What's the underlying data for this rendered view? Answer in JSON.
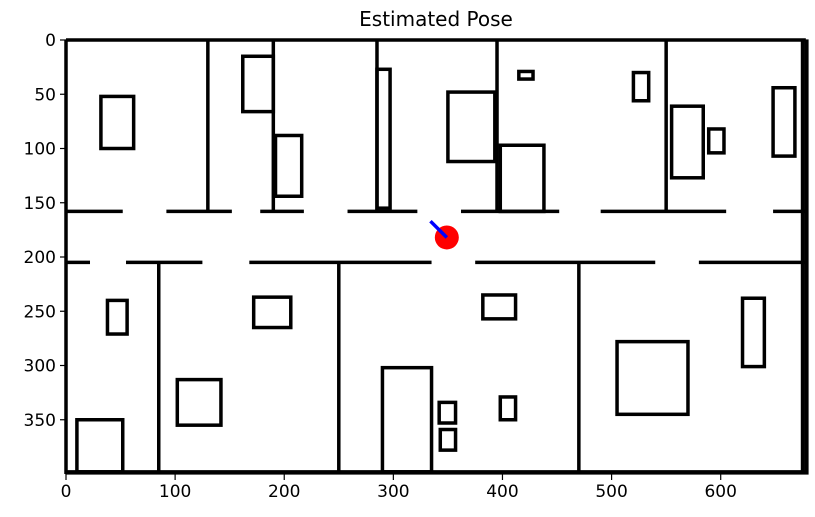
{
  "chart_data": {
    "type": "scatter",
    "title": "Estimated Pose",
    "xlabel": "",
    "ylabel": "",
    "xlim": [
      0,
      680
    ],
    "ylim": [
      400,
      0
    ],
    "y_inverted": true,
    "grid": false,
    "x_ticks": [
      0,
      100,
      200,
      300,
      400,
      500,
      600
    ],
    "y_ticks": [
      0,
      50,
      100,
      150,
      200,
      250,
      300,
      350
    ],
    "colors": {
      "map": "#000000",
      "pose": "#ff0000",
      "heading": "#0000ff",
      "background": "#ffffff"
    },
    "map": {
      "lines": [
        [
          0,
          0,
          678,
          0
        ],
        [
          0,
          0,
          0,
          400
        ],
        [
          0,
          398,
          678,
          398
        ],
        [
          678,
          0,
          678,
          400
        ],
        [
          675,
          0,
          675,
          400
        ],
        [
          130,
          0,
          130,
          158
        ],
        [
          190,
          0,
          190,
          158
        ],
        [
          285,
          0,
          285,
          158
        ],
        [
          395,
          0,
          395,
          158
        ],
        [
          550,
          0,
          550,
          158
        ],
        [
          0,
          158,
          52,
          158
        ],
        [
          92,
          158,
          152,
          158
        ],
        [
          178,
          158,
          218,
          158
        ],
        [
          258,
          158,
          322,
          158
        ],
        [
          362,
          158,
          452,
          158
        ],
        [
          490,
          158,
          605,
          158
        ],
        [
          648,
          158,
          678,
          158
        ],
        [
          0,
          205,
          22,
          205
        ],
        [
          55,
          205,
          125,
          205
        ],
        [
          168,
          205,
          335,
          205
        ],
        [
          375,
          205,
          540,
          205
        ],
        [
          580,
          205,
          678,
          205
        ],
        [
          85,
          205,
          85,
          400
        ],
        [
          250,
          205,
          250,
          400
        ],
        [
          470,
          205,
          470,
          400
        ]
      ],
      "rects": [
        [
          32,
          52,
          62,
          100
        ],
        [
          162,
          15,
          190,
          66
        ],
        [
          192,
          88,
          216,
          144
        ],
        [
          285,
          27,
          297,
          155
        ],
        [
          350,
          48,
          393,
          112
        ],
        [
          398,
          97,
          438,
          158
        ],
        [
          415,
          29,
          428,
          36
        ],
        [
          520,
          30,
          534,
          56
        ],
        [
          555,
          61,
          584,
          127
        ],
        [
          589,
          82,
          603,
          104
        ],
        [
          648,
          44,
          668,
          107
        ],
        [
          38,
          240,
          56,
          271
        ],
        [
          172,
          237,
          206,
          265
        ],
        [
          382,
          235,
          412,
          257
        ],
        [
          102,
          313,
          142,
          355
        ],
        [
          10,
          350,
          52,
          398
        ],
        [
          290,
          302,
          335,
          398
        ],
        [
          342,
          334,
          357,
          353
        ],
        [
          343,
          359,
          357,
          378
        ],
        [
          398,
          329,
          412,
          350
        ],
        [
          505,
          278,
          570,
          345
        ],
        [
          620,
          238,
          640,
          301
        ]
      ]
    },
    "pose": {
      "x": 349,
      "y": 182
    },
    "heading": {
      "x": [
        349,
        334
      ],
      "y": [
        182,
        167
      ]
    }
  }
}
